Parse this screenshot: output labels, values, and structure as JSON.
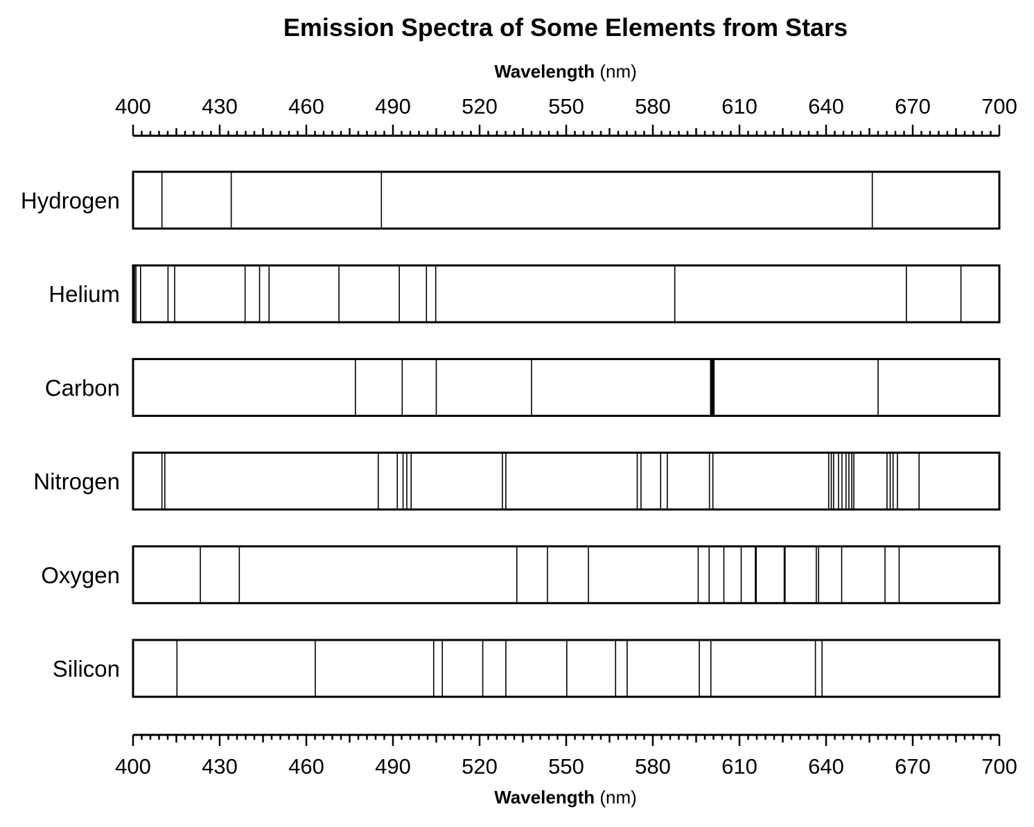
{
  "chart_data": {
    "type": "spectrum",
    "title": "Emission Spectra of Some Elements from Stars",
    "xlabel": {
      "bold": "Wavelength",
      "unit": "(nm)"
    },
    "xlim": [
      400,
      700
    ],
    "ticks": [
      "400",
      "430",
      "460",
      "490",
      "520",
      "550",
      "580",
      "610",
      "640",
      "670",
      "700"
    ],
    "rows": [
      {
        "name": "Hydrogen",
        "lines": [
          410,
          434,
          486,
          656
        ]
      },
      {
        "name": "Helium",
        "lines": [
          400.5,
          401,
          402.6,
          412.1,
          414.4,
          438.8,
          443.8,
          447.1,
          471.3,
          492.2,
          501.6,
          504.8,
          587.6,
          667.8,
          686.7
        ]
      },
      {
        "name": "Carbon",
        "lines": [
          477,
          493.2,
          505,
          538,
          600,
          600.3,
          600.6,
          600.9,
          601.2,
          658
        ]
      },
      {
        "name": "Nitrogen",
        "lines": [
          410,
          411,
          484.9,
          491.5,
          493.5,
          494.8,
          496.3,
          527.9,
          529.1,
          574.6,
          575.9,
          582.7,
          585,
          599.6,
          600.8,
          640.9,
          641.8,
          642.6,
          644.3,
          645.5,
          646.9,
          647.9,
          648.9,
          649.6,
          661.1,
          662.2,
          663.2,
          664.7,
          672.2
        ]
      },
      {
        "name": "Oxygen",
        "lines": [
          423.3,
          436.8,
          532.9,
          543.5,
          557.7,
          595.7,
          599.5,
          604.6,
          610.6,
          615.5,
          615.8,
          625.5,
          625.8,
          636.6,
          637.4,
          645.4,
          660.4,
          665.3
        ]
      },
      {
        "name": "Silicon",
        "lines": [
          415.2,
          463.1,
          504.1,
          507.1,
          521.1,
          529.1,
          550.2,
          567.1,
          571.1,
          596.1,
          600.1,
          636.3,
          638.6
        ]
      }
    ]
  }
}
